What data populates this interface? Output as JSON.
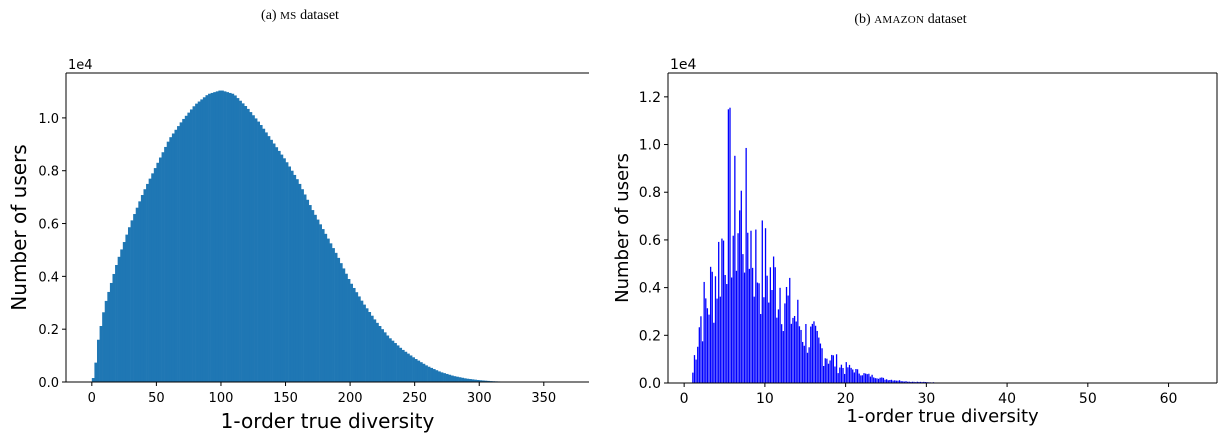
{
  "panels": [
    {
      "caption_prefix": "(a) ",
      "caption_name": "ms",
      "caption_suffix": " dataset"
    },
    {
      "caption_prefix": "(b) ",
      "caption_name": "amazon",
      "caption_suffix": " dataset"
    }
  ],
  "chart_data": [
    {
      "type": "bar",
      "xlabel": "1-order true diversity",
      "ylabel": "Number of users",
      "offset_text": "1e4",
      "xlim": [
        -20,
        385
      ],
      "ylim": [
        0,
        11700
      ],
      "xticks": [
        0,
        50,
        100,
        150,
        200,
        250,
        300,
        350
      ],
      "yticks": [
        0,
        2000,
        4000,
        6000,
        8000,
        10000
      ],
      "ytick_labels": [
        "0.0",
        "0.2",
        "0.4",
        "0.6",
        "0.8",
        "1.0"
      ],
      "color": "#1f77b4",
      "bin_width": 2,
      "curve_points": [
        [
          0,
          0
        ],
        [
          2,
          300
        ],
        [
          5,
          1600
        ],
        [
          10,
          2900
        ],
        [
          20,
          4600
        ],
        [
          30,
          6000
        ],
        [
          40,
          7200
        ],
        [
          50,
          8200
        ],
        [
          60,
          9200
        ],
        [
          70,
          9900
        ],
        [
          80,
          10500
        ],
        [
          90,
          10900
        ],
        [
          100,
          11050
        ],
        [
          110,
          10900
        ],
        [
          120,
          10400
        ],
        [
          130,
          9800
        ],
        [
          140,
          9100
        ],
        [
          150,
          8400
        ],
        [
          160,
          7600
        ],
        [
          170,
          6600
        ],
        [
          180,
          5700
        ],
        [
          190,
          4800
        ],
        [
          200,
          3800
        ],
        [
          210,
          3000
        ],
        [
          220,
          2300
        ],
        [
          230,
          1700
        ],
        [
          240,
          1250
        ],
        [
          250,
          900
        ],
        [
          260,
          600
        ],
        [
          270,
          380
        ],
        [
          280,
          230
        ],
        [
          290,
          130
        ],
        [
          300,
          70
        ],
        [
          310,
          30
        ],
        [
          320,
          12
        ],
        [
          330,
          5
        ],
        [
          340,
          2
        ],
        [
          350,
          0
        ]
      ]
    },
    {
      "type": "bar",
      "xlabel": "1-order true diversity",
      "ylabel": "Number of users",
      "offset_text": "1e4",
      "xlim": [
        -2,
        66
      ],
      "ylim": [
        0,
        13000
      ],
      "xticks": [
        0,
        10,
        20,
        30,
        40,
        50,
        60
      ],
      "yticks": [
        0,
        2000,
        4000,
        6000,
        8000,
        10000,
        12000
      ],
      "ytick_labels": [
        "0.0",
        "0.2",
        "0.4",
        "0.6",
        "0.8",
        "1.0",
        "1.2"
      ],
      "color": "#0000ff",
      "bin_width": 0.2,
      "envelope_points": [
        [
          1,
          0
        ],
        [
          1.2,
          1300
        ],
        [
          2,
          4000
        ],
        [
          3,
          5200
        ],
        [
          4,
          6800
        ],
        [
          5,
          9200
        ],
        [
          5.6,
          12500
        ],
        [
          6,
          9600
        ],
        [
          7,
          10300
        ],
        [
          8,
          9800
        ],
        [
          9,
          7300
        ],
        [
          10,
          7100
        ],
        [
          11,
          6300
        ],
        [
          12,
          6200
        ],
        [
          13,
          4600
        ],
        [
          14,
          4000
        ],
        [
          15,
          3000
        ],
        [
          16,
          2700
        ],
        [
          17,
          2100
        ],
        [
          18,
          1600
        ],
        [
          19,
          1200
        ],
        [
          20,
          900
        ],
        [
          22,
          500
        ],
        [
          25,
          200
        ],
        [
          28,
          70
        ],
        [
          32,
          20
        ],
        [
          40,
          3
        ],
        [
          65,
          0
        ]
      ]
    }
  ]
}
